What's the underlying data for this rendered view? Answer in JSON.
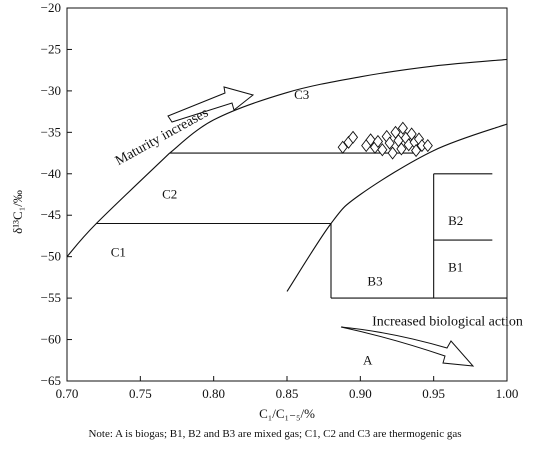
{
  "chart_data": {
    "type": "scatter",
    "xlabel": "C₁/C₁₋₅/%",
    "ylabel": "δ¹³C₁/‰",
    "xlim": [
      0.7,
      1.0
    ],
    "ylim": [
      -65,
      -20
    ],
    "xticks": [
      "0.70",
      "0.75",
      "0.80",
      "0.85",
      "0.90",
      "0.95",
      "1.00"
    ],
    "yticks": [
      "-20",
      "-25",
      "-30",
      "-35",
      "-40",
      "-45",
      "-50",
      "-55",
      "-60",
      "-65"
    ],
    "grid": false,
    "marker": "diamond",
    "points": [
      {
        "x": 0.888,
        "y": -36.8
      },
      {
        "x": 0.892,
        "y": -36.2
      },
      {
        "x": 0.895,
        "y": -35.6
      },
      {
        "x": 0.904,
        "y": -36.6
      },
      {
        "x": 0.907,
        "y": -35.9
      },
      {
        "x": 0.91,
        "y": -36.8
      },
      {
        "x": 0.912,
        "y": -36.1
      },
      {
        "x": 0.915,
        "y": -37.1
      },
      {
        "x": 0.918,
        "y": -35.5
      },
      {
        "x": 0.92,
        "y": -36.3
      },
      {
        "x": 0.922,
        "y": -37.5
      },
      {
        "x": 0.924,
        "y": -35.0
      },
      {
        "x": 0.926,
        "y": -36.0
      },
      {
        "x": 0.928,
        "y": -37.0
      },
      {
        "x": 0.929,
        "y": -34.5
      },
      {
        "x": 0.931,
        "y": -35.7
      },
      {
        "x": 0.933,
        "y": -36.5
      },
      {
        "x": 0.935,
        "y": -35.2
      },
      {
        "x": 0.937,
        "y": -36.2
      },
      {
        "x": 0.938,
        "y": -37.2
      },
      {
        "x": 0.94,
        "y": -35.8
      },
      {
        "x": 0.942,
        "y": -36.6
      },
      {
        "x": 0.946,
        "y": -36.6
      }
    ],
    "boundaries": {
      "upper_curve": [
        [
          0.77,
          -37.5
        ],
        [
          0.8,
          -33.5
        ],
        [
          0.85,
          -30.2
        ],
        [
          0.9,
          -28.3
        ],
        [
          0.95,
          -27.0
        ],
        [
          1.0,
          -26.2
        ]
      ],
      "lower_curve": [
        [
          0.85,
          -54.2
        ],
        [
          0.88,
          -46.0
        ],
        [
          0.9,
          -42.5
        ],
        [
          0.95,
          -37.2
        ],
        [
          1.0,
          -34.0
        ]
      ],
      "left_curve": [
        [
          0.7,
          -50.0
        ],
        [
          0.72,
          -46.0
        ],
        [
          0.77,
          -37.5
        ]
      ],
      "segments": [
        {
          "from": [
            0.77,
            -37.5
          ],
          "to": [
            0.94,
            -37.5
          ]
        },
        {
          "from": [
            0.72,
            -46.0
          ],
          "to": [
            0.88,
            -46.0
          ]
        },
        {
          "from": [
            0.88,
            -46.0
          ],
          "to": [
            0.88,
            -55.0
          ]
        },
        {
          "from": [
            0.88,
            -55.0
          ],
          "to": [
            1.0,
            -55.0
          ]
        },
        {
          "from": [
            0.95,
            -40.0
          ],
          "to": [
            0.95,
            -55.0
          ]
        },
        {
          "from": [
            0.95,
            -40.0
          ],
          "to": [
            0.99,
            -40.0
          ]
        },
        {
          "from": [
            0.95,
            -48.0
          ],
          "to": [
            0.99,
            -48.0
          ]
        }
      ]
    },
    "region_labels": [
      {
        "text": "C3",
        "x": 0.86,
        "y": -31.0
      },
      {
        "text": "C2",
        "x": 0.77,
        "y": -43.0
      },
      {
        "text": "C1",
        "x": 0.735,
        "y": -50.0
      },
      {
        "text": "B2",
        "x": 0.965,
        "y": -46.2
      },
      {
        "text": "B1",
        "x": 0.965,
        "y": -51.8
      },
      {
        "text": "B3",
        "x": 0.91,
        "y": -53.5
      },
      {
        "text": "A",
        "x": 0.905,
        "y": -63.0
      }
    ],
    "annotations": [
      {
        "text": "Maturity increases",
        "x": 0.735,
        "y": -39.0,
        "rotation": -29
      },
      {
        "text": "Increased biological action",
        "x": 0.908,
        "y": -58.3,
        "rotation": 0
      }
    ]
  },
  "note": "Note: A is biogas; B1, B2 and B3 are mixed gas; C1, C2 and C3 are thermogenic gas"
}
